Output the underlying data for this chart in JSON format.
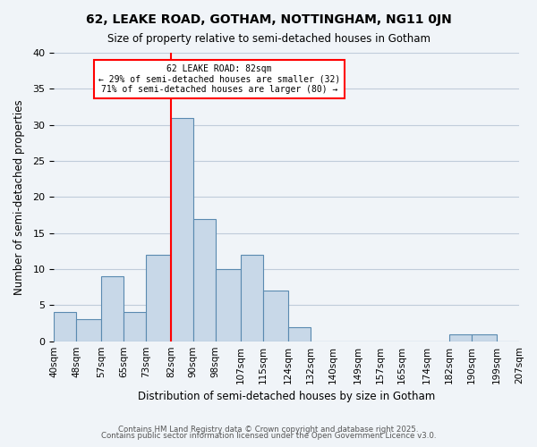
{
  "title": "62, LEAKE ROAD, GOTHAM, NOTTINGHAM, NG11 0JN",
  "subtitle": "Size of property relative to semi-detached houses in Gotham",
  "xlabel": "Distribution of semi-detached houses by size in Gotham",
  "ylabel": "Number of semi-detached properties",
  "bin_labels": [
    "40sqm",
    "48sqm",
    "57sqm",
    "65sqm",
    "73sqm",
    "82sqm",
    "90sqm",
    "98sqm",
    "107sqm",
    "115sqm",
    "124sqm",
    "132sqm",
    "140sqm",
    "149sqm",
    "157sqm",
    "165sqm",
    "174sqm",
    "182sqm",
    "190sqm",
    "199sqm",
    "207sqm"
  ],
  "bin_edges": [
    40,
    48,
    57,
    65,
    73,
    82,
    90,
    98,
    107,
    115,
    124,
    132,
    140,
    149,
    157,
    165,
    174,
    182,
    190,
    199,
    207
  ],
  "counts": [
    4,
    3,
    9,
    4,
    12,
    31,
    17,
    10,
    12,
    7,
    2,
    0,
    0,
    0,
    0,
    0,
    0,
    1,
    1,
    0
  ],
  "bar_color": "#c8d8e8",
  "bar_edge_color": "#5a8ab0",
  "grid_color": "#c0ccda",
  "background_color": "#f0f4f8",
  "vline_x": 82,
  "vline_color": "red",
  "annotation_title": "62 LEAKE ROAD: 82sqm",
  "annotation_line1": "← 29% of semi-detached houses are smaller (32)",
  "annotation_line2": "71% of semi-detached houses are larger (80) →",
  "annotation_box_color": "white",
  "annotation_box_edge": "red",
  "ylim": [
    0,
    40
  ],
  "yticks": [
    0,
    5,
    10,
    15,
    20,
    25,
    30,
    35,
    40
  ],
  "footer1": "Contains HM Land Registry data © Crown copyright and database right 2025.",
  "footer2": "Contains public sector information licensed under the Open Government Licence v3.0."
}
